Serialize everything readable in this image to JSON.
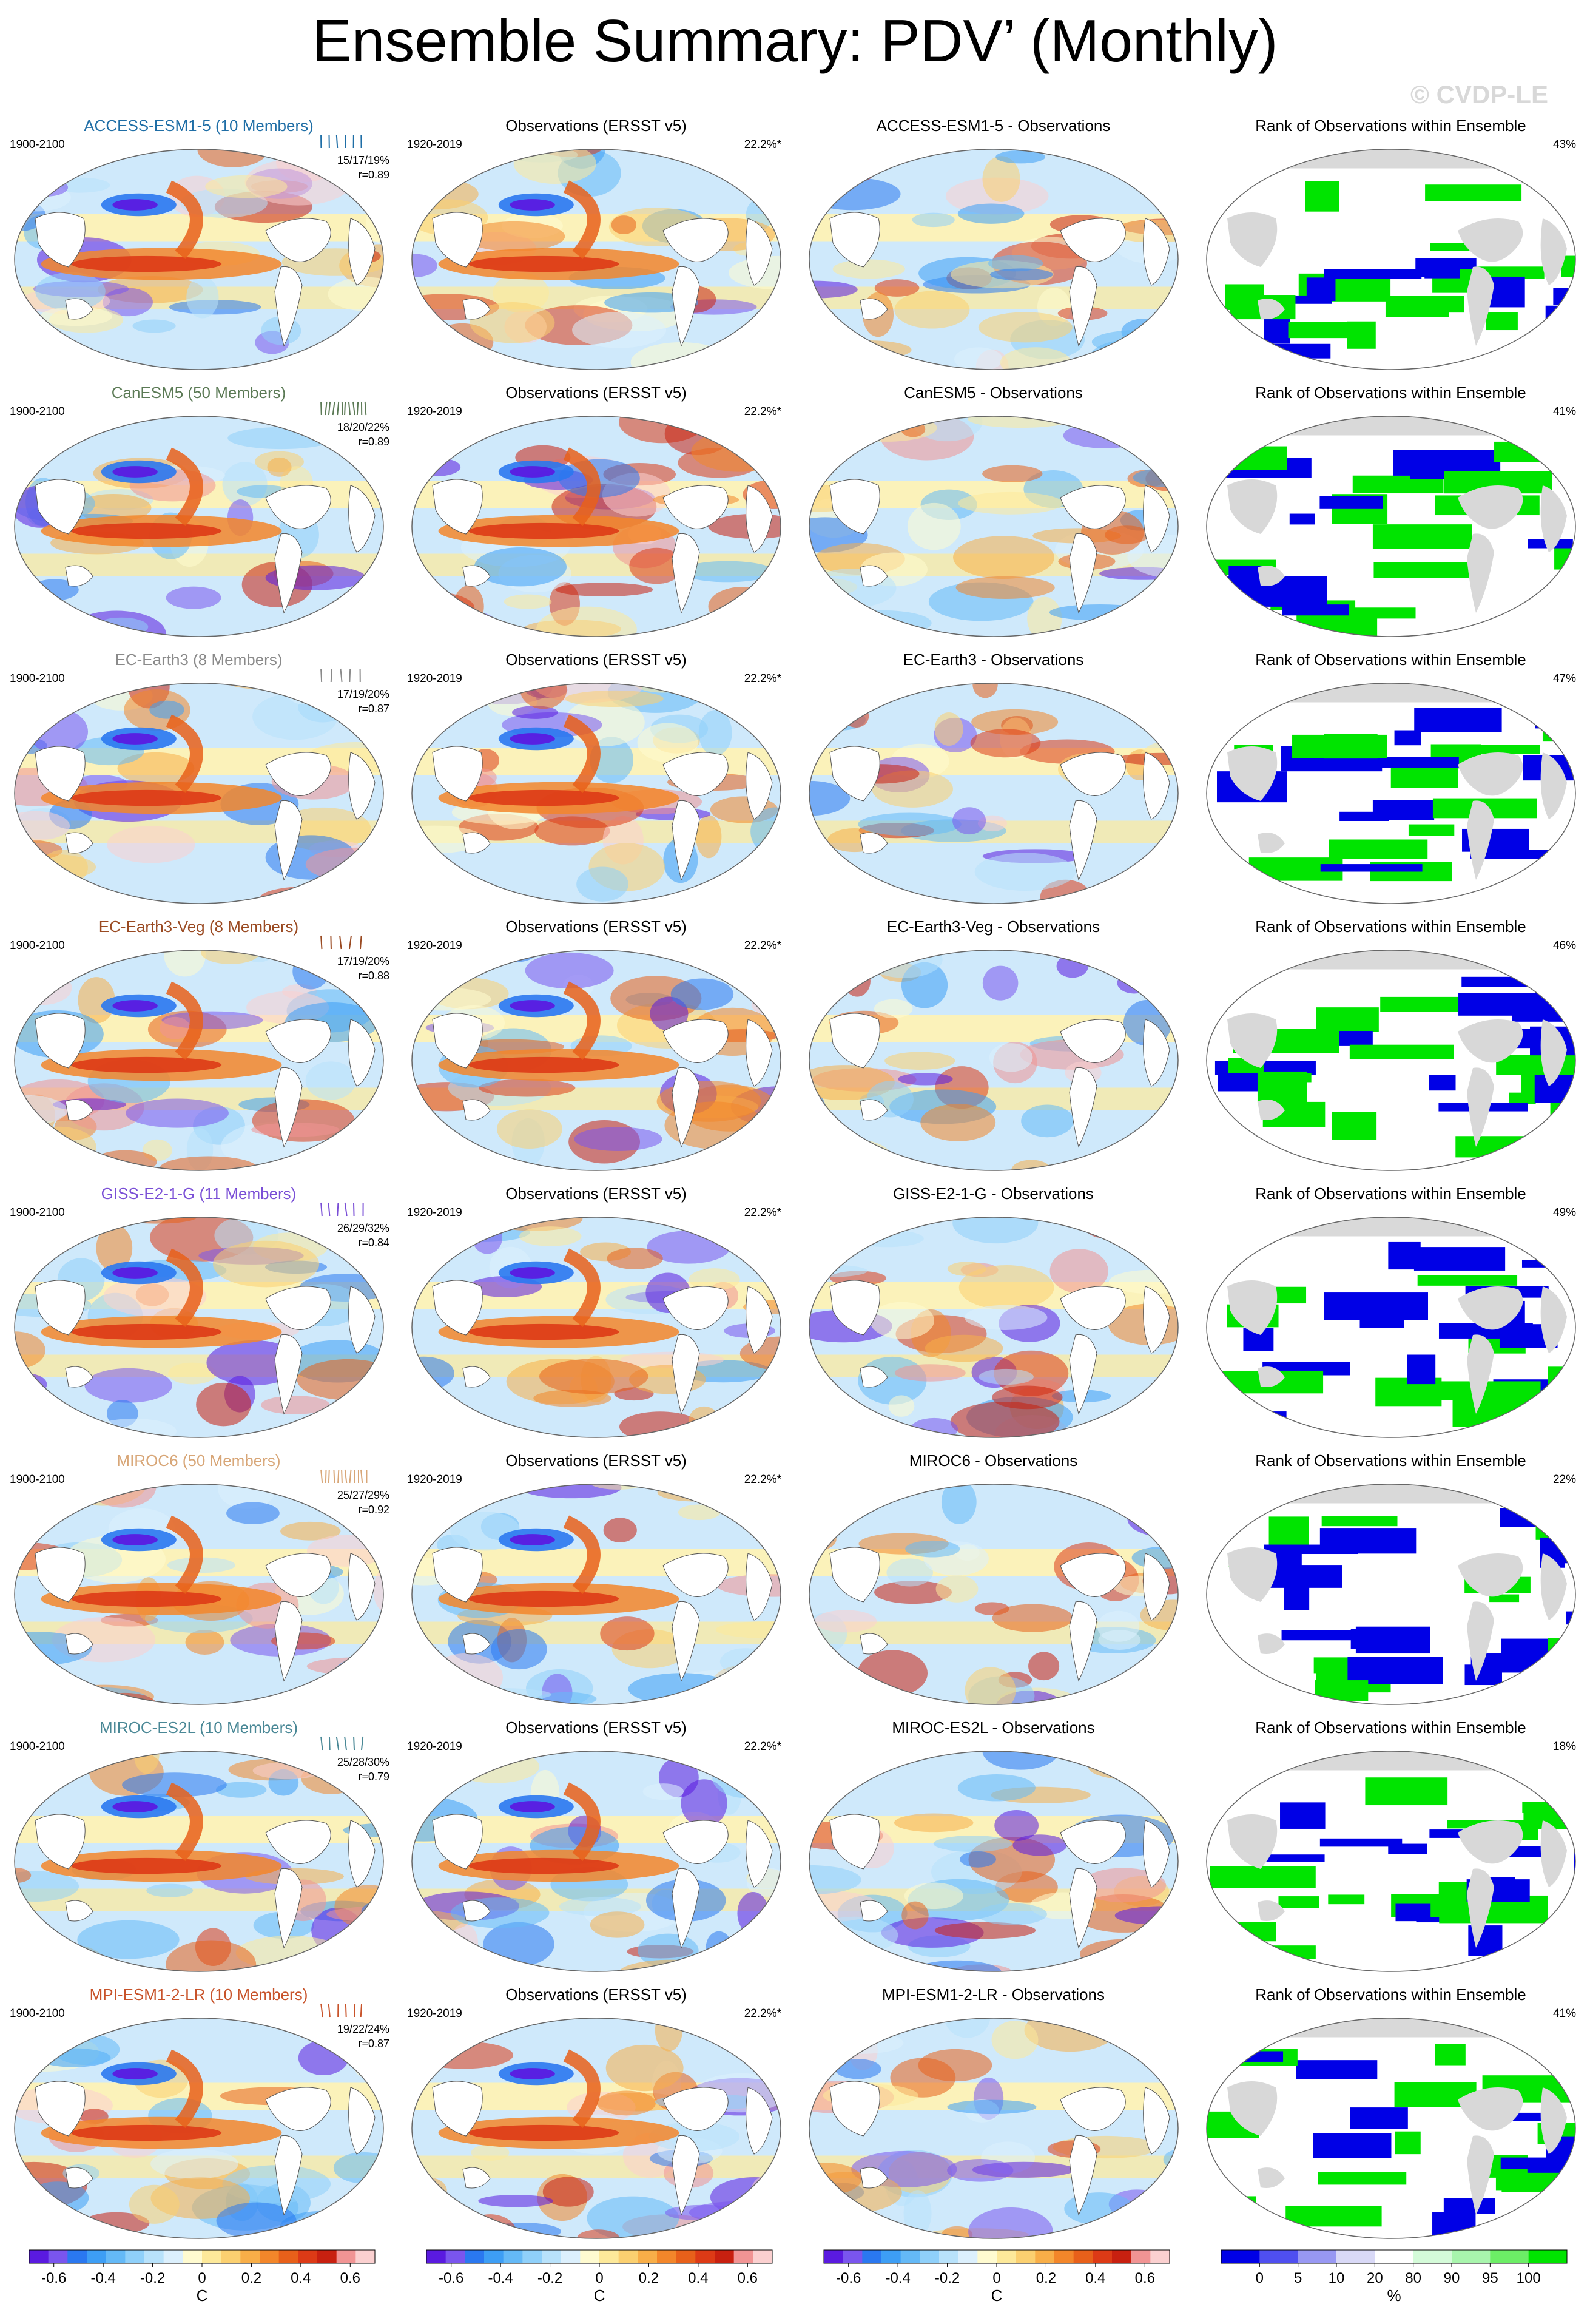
{
  "title": "Ensemble Summary: PDV’ (Monthly)",
  "watermark": "© CVDP-LE",
  "chart_data": {
    "type": "heatmap",
    "rows": [
      {
        "model": "ACCESS-ESM1-5 (10 Members)",
        "model_short": "ACCESS-ESM1-5",
        "color": "#1f6ea6",
        "model_years": "1900-2100",
        "stats": "15/17/19%",
        "r": "r=0.89",
        "obs_pct": "22.2%*",
        "rank_pct": "43%",
        "tick_count": 6
      },
      {
        "model": "CanESM5 (50 Members)",
        "model_short": "CanESM5",
        "color": "#5b7a55",
        "model_years": "1900-2100",
        "stats": "18/20/22%",
        "r": "r=0.89",
        "obs_pct": "22.2%*",
        "rank_pct": "41%",
        "tick_count": 12
      },
      {
        "model": "EC-Earth3 (8 Members)",
        "model_short": "EC-Earth3",
        "color": "#8a8a8a",
        "model_years": "1900-2100",
        "stats": "17/19/20%",
        "r": "r=0.87",
        "obs_pct": "22.2%*",
        "rank_pct": "47%",
        "tick_count": 5
      },
      {
        "model": "EC-Earth3-Veg (8 Members)",
        "model_short": "EC-Earth3-Veg",
        "color": "#9a4a22",
        "model_years": "1900-2100",
        "stats": "17/19/20%",
        "r": "r=0.88",
        "obs_pct": "22.2%*",
        "rank_pct": "46%",
        "tick_count": 5
      },
      {
        "model": "GISS-E2-1-G (11 Members)",
        "model_short": "GISS-E2-1-G",
        "color": "#7a4fd6",
        "model_years": "1900-2100",
        "stats": "26/29/32%",
        "r": "r=0.84",
        "obs_pct": "22.2%*",
        "rank_pct": "49%",
        "tick_count": 6
      },
      {
        "model": "MIROC6 (50 Members)",
        "model_short": "MIROC6",
        "color": "#d8a677",
        "model_years": "1900-2100",
        "stats": "25/27/29%",
        "r": "r=0.92",
        "obs_pct": "22.2%*",
        "rank_pct": "22%",
        "tick_count": 12
      },
      {
        "model": "MIROC-ES2L (10 Members)",
        "model_short": "MIROC-ES2L",
        "color": "#4a8896",
        "model_years": "1900-2100",
        "stats": "25/28/30%",
        "r": "r=0.79",
        "obs_pct": "22.2%*",
        "rank_pct": "18%",
        "tick_count": 6
      },
      {
        "model": "MPI-ESM1-2-LR (10 Members)",
        "model_short": "MPI-ESM1-2-LR",
        "color": "#c8532a",
        "model_years": "1900-2100",
        "stats": "19/22/24%",
        "r": "r=0.87",
        "obs_pct": "22.2%*",
        "rank_pct": "41%",
        "tick_count": 6
      }
    ],
    "obs_title": "Observations (ERSST v5)",
    "obs_years": "1920-2019",
    "diff_suffix": " - Observations",
    "rank_title": "Rank of Observations within Ensemble",
    "anomaly_colorbar": {
      "unit": "C",
      "tick_labels": [
        "-0.6",
        "-0.4",
        "-0.2",
        "0",
        "0.2",
        "0.4",
        "0.6"
      ],
      "tick_values": [
        -0.6,
        -0.4,
        -0.2,
        0,
        0.2,
        0.4,
        0.6
      ],
      "range": [
        -0.7,
        0.7
      ],
      "colors": [
        "#5a1ae0",
        "#7a55ee",
        "#2a78f0",
        "#3d9ef5",
        "#64b9f7",
        "#8fd0fa",
        "#b8e2fb",
        "#dcf0fd",
        "#fffbd0",
        "#fde99a",
        "#fbd070",
        "#f8ae48",
        "#f3862a",
        "#e8601a",
        "#dd3a16",
        "#c82010",
        "#f19494",
        "#fbd0d0"
      ]
    },
    "rank_colorbar": {
      "unit": "%",
      "tick_labels": [
        "0",
        "5",
        "10",
        "20",
        "80",
        "90",
        "95",
        "100"
      ],
      "colors": [
        "#0000e6",
        "#4f4ff0",
        "#9898f3",
        "#d9d9f7",
        "#ffffff",
        "#d4fbd9",
        "#a8f5ad",
        "#6cee66",
        "#00e400"
      ]
    }
  }
}
